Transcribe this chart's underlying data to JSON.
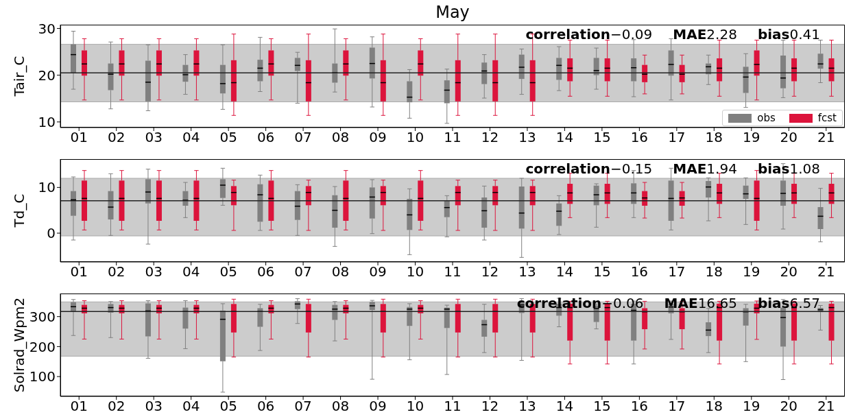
{
  "chart_data": [
    {
      "type": "box",
      "title": "May",
      "ylabel": "Tair_C",
      "categories": [
        "01",
        "02",
        "03",
        "04",
        "05",
        "06",
        "07",
        "08",
        "09",
        "10",
        "11",
        "12",
        "13",
        "14",
        "15",
        "16",
        "17",
        "18",
        "19",
        "20",
        "21"
      ],
      "ylim": [
        8.8,
        30.8
      ],
      "yticks": [
        10,
        20,
        30
      ],
      "legend": "bottom right",
      "bands": [
        {
          "axis": "y",
          "from": 14.3,
          "to": 26.6,
          "color": "#cccccc"
        }
      ],
      "ref_lines": [
        {
          "axis": "y",
          "value": 20.5,
          "color": "#222222"
        }
      ],
      "annotations": [
        "correlation−0.09",
        "MAE2.28",
        "bias0.41"
      ],
      "series": [
        {
          "name": "obs",
          "color": "#808080",
          "boxes": [
            {
              "low": 17.0,
              "q1": 20.5,
              "median": 24.4,
              "q3": 26.6,
              "high": 29.4
            },
            {
              "low": 12.8,
              "q1": 16.8,
              "median": 20.2,
              "q3": 22.5,
              "high": 27.1
            },
            {
              "low": 12.4,
              "q1": 14.4,
              "median": 18.5,
              "q3": 23.1,
              "high": 26.5
            },
            {
              "low": 15.9,
              "q1": 18.6,
              "median": 20.1,
              "q3": 22.2,
              "high": 24.4
            },
            {
              "low": 12.7,
              "q1": 16.1,
              "median": 18.2,
              "q3": 22.2,
              "high": 26.5
            },
            {
              "low": 16.5,
              "q1": 18.7,
              "median": 21.5,
              "q3": 23.3,
              "high": 28.1
            },
            {
              "low": 14.0,
              "q1": 20.9,
              "median": 22.1,
              "q3": 23.7,
              "high": 24.9
            },
            {
              "low": 16.4,
              "q1": 18.4,
              "median": 20.5,
              "q3": 22.5,
              "high": 29.9
            },
            {
              "low": 13.2,
              "q1": 19.3,
              "median": 22.5,
              "q3": 25.9,
              "high": 28.2
            },
            {
              "low": 10.8,
              "q1": 14.2,
              "median": 15.3,
              "q3": 18.7,
              "high": 21.2
            },
            {
              "low": 9.7,
              "q1": 14.0,
              "median": 16.8,
              "q3": 18.9,
              "high": 21.3
            },
            {
              "low": 15.1,
              "q1": 18.1,
              "median": 20.9,
              "q3": 22.7,
              "high": 24.4
            },
            {
              "low": 15.9,
              "q1": 19.2,
              "median": 21.7,
              "q3": 24.4,
              "high": 25.6
            },
            {
              "low": 16.7,
              "q1": 19.0,
              "median": 22.1,
              "q3": 23.7,
              "high": 26.1
            },
            {
              "low": 17.0,
              "q1": 20.0,
              "median": 21.0,
              "q3": 23.7,
              "high": 25.8
            },
            {
              "low": 15.4,
              "q1": 18.7,
              "median": 21.6,
              "q3": 23.6,
              "high": 27.6
            },
            {
              "low": 14.7,
              "q1": 19.9,
              "median": 22.3,
              "q3": 25.3,
              "high": 27.8
            },
            {
              "low": 18.0,
              "q1": 20.2,
              "median": 21.8,
              "q3": 22.5,
              "high": 24.3
            },
            {
              "low": 13.1,
              "q1": 16.2,
              "median": 19.6,
              "q3": 21.8,
              "high": 24.6
            },
            {
              "low": 15.2,
              "q1": 17.2,
              "median": 19.4,
              "q3": 24.2,
              "high": 27.5
            },
            {
              "low": 18.4,
              "q1": 21.4,
              "median": 22.4,
              "q3": 24.6,
              "high": 27.5
            }
          ]
        },
        {
          "name": "fcst",
          "color": "#dc143c",
          "boxes": [
            {
              "low": 14.7,
              "q1": 19.9,
              "median": 22.4,
              "q3": 25.3,
              "high": 27.8
            },
            {
              "low": 14.7,
              "q1": 19.9,
              "median": 22.4,
              "q3": 25.3,
              "high": 27.8
            },
            {
              "low": 14.7,
              "q1": 19.9,
              "median": 22.4,
              "q3": 25.3,
              "high": 27.8
            },
            {
              "low": 14.7,
              "q1": 19.9,
              "median": 22.4,
              "q3": 25.3,
              "high": 27.8
            },
            {
              "low": 11.4,
              "q1": 14.4,
              "median": 18.4,
              "q3": 23.2,
              "high": 28.8
            },
            {
              "low": 14.7,
              "q1": 19.9,
              "median": 22.4,
              "q3": 25.3,
              "high": 27.8
            },
            {
              "low": 11.4,
              "q1": 14.4,
              "median": 18.4,
              "q3": 23.2,
              "high": 28.8
            },
            {
              "low": 14.7,
              "q1": 19.9,
              "median": 22.4,
              "q3": 25.3,
              "high": 27.8
            },
            {
              "low": 11.4,
              "q1": 14.4,
              "median": 18.4,
              "q3": 23.2,
              "high": 28.8
            },
            {
              "low": 14.7,
              "q1": 19.9,
              "median": 22.4,
              "q3": 25.3,
              "high": 27.8
            },
            {
              "low": 11.4,
              "q1": 14.4,
              "median": 18.4,
              "q3": 23.2,
              "high": 28.8
            },
            {
              "low": 11.4,
              "q1": 14.4,
              "median": 18.4,
              "q3": 23.2,
              "high": 28.8
            },
            {
              "low": 11.4,
              "q1": 14.4,
              "median": 18.4,
              "q3": 23.2,
              "high": 28.8
            },
            {
              "low": 15.5,
              "q1": 18.7,
              "median": 21.5,
              "q3": 23.6,
              "high": 27.5
            },
            {
              "low": 15.5,
              "q1": 18.7,
              "median": 21.5,
              "q3": 23.6,
              "high": 27.5
            },
            {
              "low": 16.0,
              "q1": 18.5,
              "median": 20.2,
              "q3": 22.2,
              "high": 24.3
            },
            {
              "low": 16.0,
              "q1": 18.5,
              "median": 20.2,
              "q3": 22.2,
              "high": 24.3
            },
            {
              "low": 15.5,
              "q1": 18.7,
              "median": 21.5,
              "q3": 23.6,
              "high": 27.5
            },
            {
              "low": 14.7,
              "q1": 19.9,
              "median": 22.3,
              "q3": 25.3,
              "high": 27.5
            },
            {
              "low": 15.5,
              "q1": 18.7,
              "median": 21.5,
              "q3": 23.6,
              "high": 27.5
            },
            {
              "low": 15.5,
              "q1": 18.7,
              "median": 21.5,
              "q3": 23.6,
              "high": 27.5
            }
          ]
        }
      ]
    },
    {
      "type": "box",
      "ylabel": "Td_C",
      "categories": [
        "01",
        "02",
        "03",
        "04",
        "05",
        "06",
        "07",
        "08",
        "09",
        "10",
        "11",
        "12",
        "13",
        "14",
        "15",
        "16",
        "17",
        "18",
        "19",
        "20",
        "21"
      ],
      "ylim": [
        -6.3,
        16.2
      ],
      "yticks": [
        0,
        10
      ],
      "bands": [
        {
          "axis": "y",
          "from": -0.6,
          "to": 12.0,
          "color": "#cccccc"
        }
      ],
      "ref_lines": [
        {
          "axis": "y",
          "value": 7.1,
          "color": "#222222"
        }
      ],
      "annotations": [
        "correlation−0.15",
        "MAE1.94",
        "bias1.08"
      ],
      "series": [
        {
          "color": "#808080",
          "boxes": [
            {
              "low": -1.5,
              "q1": 3.8,
              "median": 7.3,
              "q3": 9.2,
              "high": 12.3
            },
            {
              "low": -0.5,
              "q1": 3.0,
              "median": 5.7,
              "q3": 9.2,
              "high": 13.0
            },
            {
              "low": -2.4,
              "q1": 6.5,
              "median": 9.0,
              "q3": 11.8,
              "high": 14.0
            },
            {
              "low": 3.4,
              "q1": 6.0,
              "median": 7.2,
              "q3": 9.2,
              "high": 11.1
            },
            {
              "low": 6.1,
              "q1": 7.7,
              "median": 10.5,
              "q3": 11.8,
              "high": 14.2
            },
            {
              "low": 0.6,
              "q1": 2.5,
              "median": 8.4,
              "q3": 10.7,
              "high": 12.7
            },
            {
              "low": -0.5,
              "q1": 2.9,
              "median": 5.9,
              "q3": 9.2,
              "high": 10.6
            },
            {
              "low": -2.9,
              "q1": 1.2,
              "median": 5.0,
              "q3": 8.3,
              "high": 10.2
            },
            {
              "low": -0.1,
              "q1": 3.2,
              "median": 7.9,
              "q3": 10.0,
              "high": 11.7
            },
            {
              "low": -4.7,
              "q1": 0.7,
              "median": 4.0,
              "q3": 7.5,
              "high": 9.7
            },
            {
              "low": -0.8,
              "q1": 3.5,
              "median": 5.6,
              "q3": 7.2,
              "high": 8.2
            },
            {
              "low": -1.5,
              "q1": 1.2,
              "median": 4.9,
              "q3": 7.8,
              "high": 10.3
            },
            {
              "low": -5.3,
              "q1": 1.0,
              "median": 4.4,
              "q3": 10.2,
              "high": 12.0
            },
            {
              "low": -0.3,
              "q1": 1.6,
              "median": 4.8,
              "q3": 6.5,
              "high": 8.2
            },
            {
              "low": 1.3,
              "q1": 6.1,
              "median": 8.4,
              "q3": 10.4,
              "high": 10.8
            },
            {
              "low": 3.4,
              "q1": 6.4,
              "median": 8.8,
              "q3": 10.9,
              "high": 13.7
            },
            {
              "low": 0.7,
              "q1": 2.7,
              "median": 7.6,
              "q3": 11.5,
              "high": 14.2
            },
            {
              "low": 2.7,
              "q1": 7.8,
              "median": 10.1,
              "q3": 11.4,
              "high": 12.1
            },
            {
              "low": 1.9,
              "q1": 7.5,
              "median": 8.6,
              "q3": 10.4,
              "high": 12.1
            },
            {
              "low": 0.9,
              "q1": 6.0,
              "median": 8.7,
              "q3": 11.5,
              "high": 15.2
            },
            {
              "low": -1.9,
              "q1": 0.9,
              "median": 3.7,
              "q3": 5.7,
              "high": 9.8
            }
          ]
        },
        {
          "color": "#dc143c",
          "boxes": [
            {
              "low": 0.7,
              "q1": 2.7,
              "median": 7.6,
              "q3": 11.5,
              "high": 13.7
            },
            {
              "low": 0.7,
              "q1": 2.7,
              "median": 7.6,
              "q3": 11.5,
              "high": 13.7
            },
            {
              "low": 0.7,
              "q1": 2.7,
              "median": 7.6,
              "q3": 11.5,
              "high": 13.7
            },
            {
              "low": 0.7,
              "q1": 2.7,
              "median": 7.6,
              "q3": 11.5,
              "high": 13.7
            },
            {
              "low": 0.6,
              "q1": 6.1,
              "median": 8.9,
              "q3": 10.3,
              "high": 11.6
            },
            {
              "low": 0.7,
              "q1": 2.7,
              "median": 7.6,
              "q3": 11.5,
              "high": 13.7
            },
            {
              "low": 0.6,
              "q1": 6.1,
              "median": 8.9,
              "q3": 10.3,
              "high": 11.6
            },
            {
              "low": 0.7,
              "q1": 2.7,
              "median": 7.6,
              "q3": 11.5,
              "high": 13.7
            },
            {
              "low": 0.6,
              "q1": 6.1,
              "median": 8.9,
              "q3": 10.3,
              "high": 11.6
            },
            {
              "low": 0.7,
              "q1": 2.7,
              "median": 7.6,
              "q3": 11.5,
              "high": 13.7
            },
            {
              "low": 0.6,
              "q1": 6.1,
              "median": 8.9,
              "q3": 10.3,
              "high": 11.6
            },
            {
              "low": 0.6,
              "q1": 6.1,
              "median": 8.9,
              "q3": 10.3,
              "high": 11.6
            },
            {
              "low": 0.6,
              "q1": 6.1,
              "median": 8.9,
              "q3": 10.3,
              "high": 11.6
            },
            {
              "low": 3.4,
              "q1": 6.4,
              "median": 8.8,
              "q3": 10.8,
              "high": 13.1
            },
            {
              "low": 3.4,
              "q1": 6.4,
              "median": 8.8,
              "q3": 10.8,
              "high": 13.1
            },
            {
              "low": 3.3,
              "q1": 6.0,
              "median": 7.7,
              "q3": 9.2,
              "high": 11.1
            },
            {
              "low": 3.3,
              "q1": 6.0,
              "median": 7.7,
              "q3": 9.2,
              "high": 11.1
            },
            {
              "low": 3.4,
              "q1": 6.4,
              "median": 8.8,
              "q3": 10.8,
              "high": 13.1
            },
            {
              "low": 0.7,
              "q1": 2.7,
              "median": 7.6,
              "q3": 11.5,
              "high": 13.7
            },
            {
              "low": 3.4,
              "q1": 6.4,
              "median": 8.8,
              "q3": 10.8,
              "high": 13.1
            },
            {
              "low": 3.4,
              "q1": 6.4,
              "median": 8.8,
              "q3": 10.8,
              "high": 13.1
            }
          ]
        }
      ]
    },
    {
      "type": "box",
      "ylabel": "Solrad_Wpm2",
      "categories": [
        "01",
        "02",
        "03",
        "04",
        "05",
        "06",
        "07",
        "08",
        "09",
        "10",
        "11",
        "12",
        "13",
        "14",
        "15",
        "16",
        "17",
        "18",
        "19",
        "20",
        "21"
      ],
      "ylim": [
        34,
        377
      ],
      "yticks": [
        100,
        200,
        300
      ],
      "bands": [
        {
          "axis": "y",
          "from": 168,
          "to": 349,
          "color": "#cccccc"
        }
      ],
      "ref_lines": [
        {
          "axis": "y",
          "value": 317,
          "color": "#222222"
        }
      ],
      "annotations": [
        "correlation−0.06",
        "MAE16.65",
        "bias6.57"
      ],
      "series": [
        {
          "color": "#808080",
          "boxes": [
            {
              "low": 237,
              "q1": 317,
              "median": 333,
              "q3": 348,
              "high": 357
            },
            {
              "low": 230,
              "q1": 313,
              "median": 330,
              "q3": 342,
              "high": 350
            },
            {
              "low": 161,
              "q1": 234,
              "median": 319,
              "q3": 344,
              "high": 353
            },
            {
              "low": 193,
              "q1": 260,
              "median": 317,
              "q3": 330,
              "high": 353
            },
            {
              "low": 48,
              "q1": 151,
              "median": 291,
              "q3": 320,
              "high": 343
            },
            {
              "low": 187,
              "q1": 266,
              "median": 317,
              "q3": 328,
              "high": 341
            },
            {
              "low": 277,
              "q1": 325,
              "median": 342,
              "q3": 351,
              "high": 360
            },
            {
              "low": 219,
              "q1": 289,
              "median": 325,
              "q3": 339,
              "high": 350
            },
            {
              "low": 91,
              "q1": 322,
              "median": 336,
              "q3": 349,
              "high": 354
            },
            {
              "low": 156,
              "q1": 269,
              "median": 325,
              "q3": 332,
              "high": 343
            },
            {
              "low": 107,
              "q1": 262,
              "median": 325,
              "q3": 330,
              "high": 338
            },
            {
              "low": 180,
              "q1": 233,
              "median": 273,
              "q3": 289,
              "high": 341
            },
            {
              "low": 154,
              "q1": 312,
              "median": 339,
              "q3": 352,
              "high": 360
            },
            {
              "low": 266,
              "q1": 303,
              "median": 330,
              "q3": 343,
              "high": 361
            },
            {
              "low": 259,
              "q1": 282,
              "median": 327,
              "q3": 337,
              "high": 342
            },
            {
              "low": 142,
              "q1": 220,
              "median": 321,
              "q3": 343,
              "high": 352
            },
            {
              "low": 224,
              "q1": 311,
              "median": 332,
              "q3": 343,
              "high": 352
            },
            {
              "low": 180,
              "q1": 235,
              "median": 255,
              "q3": 281,
              "high": 327
            },
            {
              "low": 150,
              "q1": 270,
              "median": 316,
              "q3": 328,
              "high": 341
            },
            {
              "low": 90,
              "q1": 200,
              "median": 297,
              "q3": 330,
              "high": 357
            },
            {
              "low": 255,
              "q1": 315,
              "median": 323,
              "q3": 329,
              "high": 337
            }
          ]
        },
        {
          "color": "#dc143c",
          "boxes": [
            {
              "low": 225,
              "q1": 311,
              "median": 328,
              "q3": 339,
              "high": 353
            },
            {
              "low": 225,
              "q1": 311,
              "median": 328,
              "q3": 339,
              "high": 353
            },
            {
              "low": 225,
              "q1": 311,
              "median": 328,
              "q3": 339,
              "high": 353
            },
            {
              "low": 225,
              "q1": 311,
              "median": 328,
              "q3": 339,
              "high": 353
            },
            {
              "low": 165,
              "q1": 247,
              "median": 317,
              "q3": 342,
              "high": 358
            },
            {
              "low": 225,
              "q1": 311,
              "median": 328,
              "q3": 339,
              "high": 353
            },
            {
              "low": 165,
              "q1": 247,
              "median": 317,
              "q3": 342,
              "high": 358
            },
            {
              "low": 225,
              "q1": 311,
              "median": 328,
              "q3": 339,
              "high": 353
            },
            {
              "low": 165,
              "q1": 247,
              "median": 317,
              "q3": 342,
              "high": 358
            },
            {
              "low": 225,
              "q1": 311,
              "median": 328,
              "q3": 339,
              "high": 353
            },
            {
              "low": 165,
              "q1": 247,
              "median": 317,
              "q3": 342,
              "high": 358
            },
            {
              "low": 165,
              "q1": 247,
              "median": 317,
              "q3": 342,
              "high": 358
            },
            {
              "low": 165,
              "q1": 247,
              "median": 317,
              "q3": 342,
              "high": 358
            },
            {
              "low": 142,
              "q1": 220,
              "median": 330,
              "q3": 343,
              "high": 351
            },
            {
              "low": 142,
              "q1": 220,
              "median": 330,
              "q3": 343,
              "high": 351
            },
            {
              "low": 192,
              "q1": 258,
              "median": 316,
              "q3": 328,
              "high": 351
            },
            {
              "low": 192,
              "q1": 258,
              "median": 316,
              "q3": 328,
              "high": 351
            },
            {
              "low": 142,
              "q1": 220,
              "median": 330,
              "q3": 343,
              "high": 351
            },
            {
              "low": 224,
              "q1": 311,
              "median": 328,
              "q3": 343,
              "high": 352
            },
            {
              "low": 142,
              "q1": 220,
              "median": 330,
              "q3": 343,
              "high": 351
            },
            {
              "low": 142,
              "q1": 220,
              "median": 330,
              "q3": 343,
              "high": 351
            }
          ]
        }
      ]
    }
  ]
}
